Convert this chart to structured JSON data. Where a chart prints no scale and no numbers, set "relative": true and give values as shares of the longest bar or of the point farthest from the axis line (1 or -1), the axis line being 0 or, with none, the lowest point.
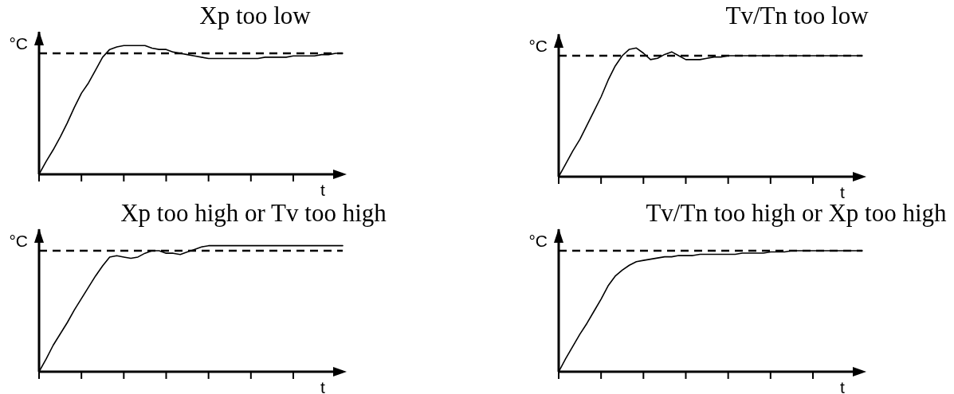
{
  "chart_data": [
    {
      "type": "line",
      "title": "Xp too low",
      "xlabel": "t",
      "ylabel": "°C",
      "relative": true,
      "color": "#000000",
      "categories": [
        null,
        null,
        null,
        null,
        null,
        null,
        null,
        null,
        null,
        null,
        null,
        null,
        null,
        null,
        null,
        null,
        null,
        null,
        null,
        null,
        null,
        null,
        null,
        null,
        null,
        null,
        null,
        null,
        null,
        null,
        null,
        null,
        null,
        null,
        null,
        null,
        null,
        null,
        null,
        null,
        null,
        null,
        null,
        null
      ],
      "values": [
        0,
        0.1,
        0.19,
        0.29,
        0.4,
        0.52,
        0.63,
        0.71,
        0.81,
        0.91,
        0.97,
        0.99,
        1,
        1,
        1,
        1,
        0.98,
        0.97,
        0.97,
        0.95,
        0.94,
        0.93,
        0.92,
        0.91,
        0.9,
        0.9,
        0.9,
        0.9,
        0.9,
        0.9,
        0.9,
        0.9,
        0.91,
        0.91,
        0.91,
        0.91,
        0.92,
        0.92,
        0.92,
        0.92,
        0.93,
        0.93,
        0.94,
        0.94
      ],
      "ref_lines": [
        {
          "axis": "y",
          "value": 0.94,
          "color": "#000000",
          "line_style": "dashed"
        }
      ]
    },
    {
      "type": "line",
      "title": "Tv/Tn too low",
      "xlabel": "t",
      "ylabel": "°C",
      "relative": true,
      "color": "#000000",
      "categories": [
        null,
        null,
        null,
        null,
        null,
        null,
        null,
        null,
        null,
        null,
        null,
        null,
        null,
        null,
        null,
        null,
        null,
        null,
        null,
        null,
        null,
        null,
        null,
        null,
        null,
        null,
        null,
        null,
        null,
        null,
        null,
        null,
        null,
        null,
        null,
        null,
        null,
        null,
        null,
        null,
        null,
        null,
        null,
        null
      ],
      "values": [
        0,
        0.1,
        0.2,
        0.29,
        0.4,
        0.51,
        0.62,
        0.75,
        0.86,
        0.94,
        0.99,
        1,
        0.96,
        0.91,
        0.92,
        0.95,
        0.97,
        0.94,
        0.91,
        0.91,
        0.91,
        0.92,
        0.93,
        0.93,
        0.94,
        0.94,
        0.94,
        0.94,
        0.94,
        0.94,
        0.94,
        0.94,
        0.94,
        0.94,
        0.94,
        0.94,
        0.94,
        0.94,
        0.94,
        0.94,
        0.94,
        0.94,
        0.94,
        0.94
      ],
      "ref_lines": [
        {
          "axis": "y",
          "value": 0.94,
          "color": "#000000",
          "line_style": "dashed"
        }
      ]
    },
    {
      "type": "line",
      "title": "Xp too high or Tv too high",
      "xlabel": "t",
      "ylabel": "°C",
      "relative": true,
      "color": "#000000",
      "categories": [
        null,
        null,
        null,
        null,
        null,
        null,
        null,
        null,
        null,
        null,
        null,
        null,
        null,
        null,
        null,
        null,
        null,
        null,
        null,
        null,
        null,
        null,
        null,
        null,
        null,
        null,
        null,
        null,
        null,
        null,
        null,
        null,
        null,
        null,
        null,
        null,
        null,
        null,
        null,
        null,
        null,
        null,
        null,
        null
      ],
      "values": [
        0,
        0.1,
        0.21,
        0.3,
        0.39,
        0.49,
        0.58,
        0.67,
        0.76,
        0.84,
        0.91,
        0.92,
        0.91,
        0.9,
        0.91,
        0.94,
        0.96,
        0.96,
        0.94,
        0.94,
        0.93,
        0.95,
        0.97,
        0.99,
        1,
        1,
        1,
        1,
        1,
        1,
        1,
        1,
        1,
        1,
        1,
        1,
        1,
        1,
        1,
        1,
        1,
        1,
        1,
        1
      ],
      "ref_lines": [
        {
          "axis": "y",
          "value": 0.96,
          "color": "#000000",
          "line_style": "dashed"
        }
      ]
    },
    {
      "type": "line",
      "title": "Tv/Tn too high or Xp too high",
      "xlabel": "t",
      "ylabel": "°C",
      "relative": true,
      "color": "#000000",
      "categories": [
        null,
        null,
        null,
        null,
        null,
        null,
        null,
        null,
        null,
        null,
        null,
        null,
        null,
        null,
        null,
        null,
        null,
        null,
        null,
        null,
        null,
        null,
        null,
        null,
        null,
        null,
        null,
        null,
        null,
        null,
        null,
        null,
        null,
        null,
        null,
        null,
        null,
        null,
        null,
        null,
        null,
        null,
        null,
        null
      ],
      "values": [
        0,
        0.11,
        0.21,
        0.31,
        0.4,
        0.5,
        0.6,
        0.71,
        0.79,
        0.84,
        0.88,
        0.91,
        0.92,
        0.93,
        0.94,
        0.95,
        0.95,
        0.96,
        0.96,
        0.96,
        0.97,
        0.97,
        0.97,
        0.97,
        0.97,
        0.97,
        0.98,
        0.98,
        0.98,
        0.98,
        0.99,
        0.99,
        0.99,
        1,
        1,
        1,
        1,
        1,
        1,
        1,
        1,
        1,
        1,
        1
      ],
      "ref_lines": [
        {
          "axis": "y",
          "value": 1,
          "color": "#000000",
          "line_style": "dashed"
        }
      ]
    }
  ]
}
